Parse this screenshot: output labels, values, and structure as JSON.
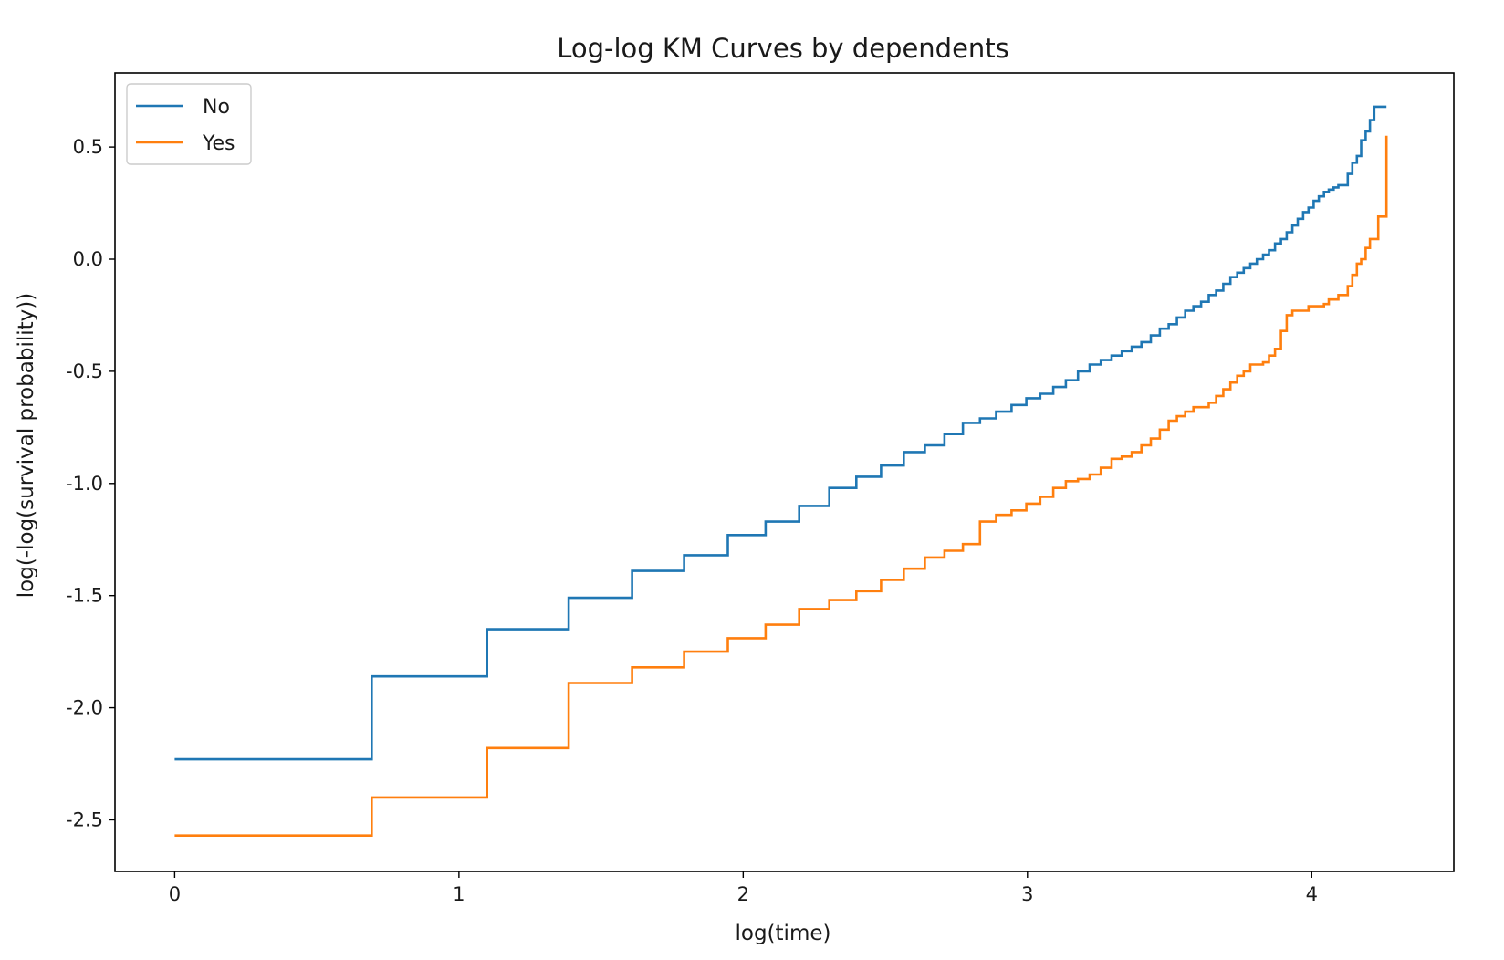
{
  "chart_data": {
    "type": "line",
    "step": "post",
    "title": "Log-log KM Curves by dependents",
    "xlabel": "log(time)",
    "ylabel": "log(-log(survival probability))",
    "xlim": [
      -0.21,
      4.5
    ],
    "ylim": [
      -2.73,
      0.83
    ],
    "xticks": [
      0,
      1,
      2,
      3,
      4
    ],
    "xtick_labels": [
      "0",
      "1",
      "2",
      "3",
      "4"
    ],
    "yticks": [
      0.5,
      0.0,
      -0.5,
      -1.0,
      -1.5,
      -2.0,
      -2.5
    ],
    "ytick_labels": [
      "0.5",
      "0.0",
      "-0.5",
      "-1.0",
      "-1.5",
      "-2.0",
      "-2.5"
    ],
    "grid": false,
    "legend": "top-left",
    "series": [
      {
        "name": "No",
        "color": "#1f77b4",
        "points": [
          [
            0.0,
            -2.23
          ],
          [
            0.693,
            -1.86
          ],
          [
            1.099,
            -1.65
          ],
          [
            1.386,
            -1.51
          ],
          [
            1.609,
            -1.39
          ],
          [
            1.792,
            -1.32
          ],
          [
            1.946,
            -1.23
          ],
          [
            2.079,
            -1.17
          ],
          [
            2.197,
            -1.1
          ],
          [
            2.303,
            -1.02
          ],
          [
            2.398,
            -0.97
          ],
          [
            2.485,
            -0.92
          ],
          [
            2.565,
            -0.86
          ],
          [
            2.639,
            -0.83
          ],
          [
            2.708,
            -0.78
          ],
          [
            2.773,
            -0.73
          ],
          [
            2.833,
            -0.71
          ],
          [
            2.89,
            -0.68
          ],
          [
            2.944,
            -0.65
          ],
          [
            2.996,
            -0.62
          ],
          [
            3.045,
            -0.6
          ],
          [
            3.091,
            -0.57
          ],
          [
            3.135,
            -0.54
          ],
          [
            3.178,
            -0.5
          ],
          [
            3.219,
            -0.47
          ],
          [
            3.258,
            -0.45
          ],
          [
            3.296,
            -0.43
          ],
          [
            3.332,
            -0.41
          ],
          [
            3.367,
            -0.39
          ],
          [
            3.401,
            -0.37
          ],
          [
            3.434,
            -0.34
          ],
          [
            3.466,
            -0.31
          ],
          [
            3.497,
            -0.29
          ],
          [
            3.526,
            -0.26
          ],
          [
            3.555,
            -0.23
          ],
          [
            3.584,
            -0.21
          ],
          [
            3.611,
            -0.19
          ],
          [
            3.638,
            -0.16
          ],
          [
            3.664,
            -0.14
          ],
          [
            3.689,
            -0.11
          ],
          [
            3.714,
            -0.08
          ],
          [
            3.738,
            -0.06
          ],
          [
            3.761,
            -0.04
          ],
          [
            3.784,
            -0.02
          ],
          [
            3.807,
            0.0
          ],
          [
            3.829,
            0.02
          ],
          [
            3.85,
            0.04
          ],
          [
            3.871,
            0.07
          ],
          [
            3.892,
            0.09
          ],
          [
            3.912,
            0.12
          ],
          [
            3.932,
            0.15
          ],
          [
            3.951,
            0.18
          ],
          [
            3.97,
            0.21
          ],
          [
            3.989,
            0.23
          ],
          [
            4.007,
            0.26
          ],
          [
            4.025,
            0.28
          ],
          [
            4.043,
            0.3
          ],
          [
            4.06,
            0.31
          ],
          [
            4.077,
            0.32
          ],
          [
            4.094,
            0.33
          ],
          [
            4.127,
            0.38
          ],
          [
            4.143,
            0.43
          ],
          [
            4.159,
            0.46
          ],
          [
            4.174,
            0.53
          ],
          [
            4.19,
            0.57
          ],
          [
            4.205,
            0.62
          ],
          [
            4.22,
            0.68
          ],
          [
            4.263,
            0.68
          ]
        ]
      },
      {
        "name": "Yes",
        "color": "#ff7f0e",
        "points": [
          [
            0.0,
            -2.57
          ],
          [
            0.693,
            -2.4
          ],
          [
            1.099,
            -2.18
          ],
          [
            1.386,
            -1.89
          ],
          [
            1.609,
            -1.82
          ],
          [
            1.792,
            -1.75
          ],
          [
            1.946,
            -1.69
          ],
          [
            2.079,
            -1.63
          ],
          [
            2.197,
            -1.56
          ],
          [
            2.303,
            -1.52
          ],
          [
            2.398,
            -1.48
          ],
          [
            2.485,
            -1.43
          ],
          [
            2.565,
            -1.38
          ],
          [
            2.639,
            -1.33
          ],
          [
            2.708,
            -1.3
          ],
          [
            2.773,
            -1.27
          ],
          [
            2.833,
            -1.17
          ],
          [
            2.89,
            -1.14
          ],
          [
            2.944,
            -1.12
          ],
          [
            2.996,
            -1.09
          ],
          [
            3.045,
            -1.06
          ],
          [
            3.091,
            -1.02
          ],
          [
            3.135,
            -0.99
          ],
          [
            3.178,
            -0.98
          ],
          [
            3.219,
            -0.96
          ],
          [
            3.258,
            -0.93
          ],
          [
            3.296,
            -0.89
          ],
          [
            3.332,
            -0.88
          ],
          [
            3.367,
            -0.86
          ],
          [
            3.401,
            -0.83
          ],
          [
            3.434,
            -0.8
          ],
          [
            3.466,
            -0.76
          ],
          [
            3.497,
            -0.72
          ],
          [
            3.526,
            -0.7
          ],
          [
            3.555,
            -0.68
          ],
          [
            3.584,
            -0.66
          ],
          [
            3.638,
            -0.64
          ],
          [
            3.664,
            -0.61
          ],
          [
            3.689,
            -0.58
          ],
          [
            3.714,
            -0.55
          ],
          [
            3.738,
            -0.52
          ],
          [
            3.761,
            -0.5
          ],
          [
            3.784,
            -0.47
          ],
          [
            3.829,
            -0.46
          ],
          [
            3.85,
            -0.43
          ],
          [
            3.871,
            -0.4
          ],
          [
            3.892,
            -0.32
          ],
          [
            3.912,
            -0.25
          ],
          [
            3.932,
            -0.23
          ],
          [
            3.989,
            -0.21
          ],
          [
            4.043,
            -0.2
          ],
          [
            4.06,
            -0.18
          ],
          [
            4.094,
            -0.16
          ],
          [
            4.127,
            -0.12
          ],
          [
            4.143,
            -0.07
          ],
          [
            4.159,
            -0.02
          ],
          [
            4.174,
            0.0
          ],
          [
            4.19,
            0.05
          ],
          [
            4.205,
            0.09
          ],
          [
            4.234,
            0.19
          ],
          [
            4.263,
            0.55
          ],
          [
            4.263,
            0.55
          ]
        ]
      }
    ]
  }
}
